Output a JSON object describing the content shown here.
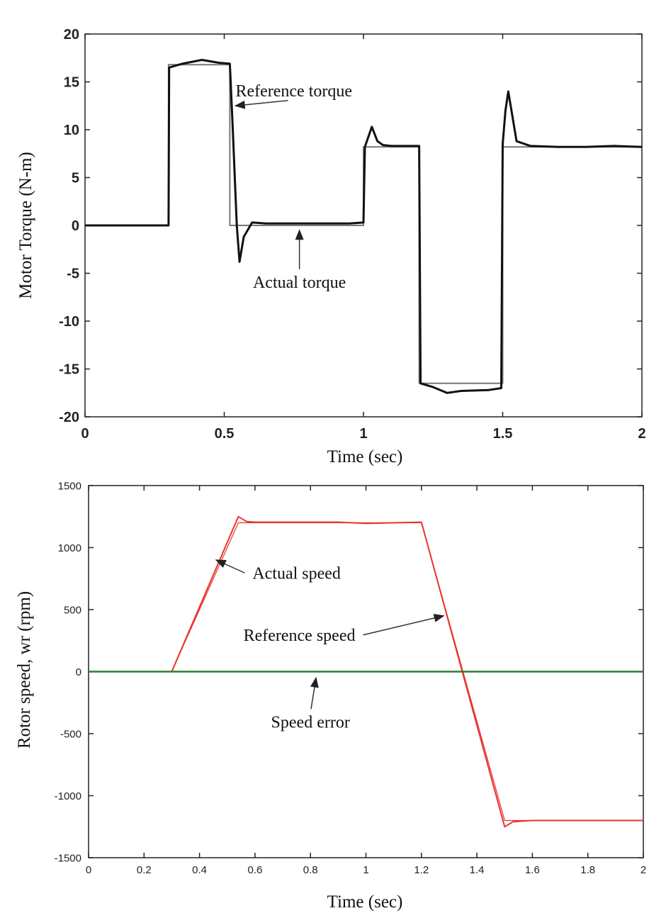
{
  "chart_data": [
    {
      "type": "line",
      "title": "",
      "xlabel": "Time (sec)",
      "ylabel": "Motor Torque (N-m)",
      "xlim": [
        0,
        2
      ],
      "ylim": [
        -20,
        20
      ],
      "xticks": [
        "0",
        "0.5",
        "1",
        "1.5",
        "2"
      ],
      "yticks": [
        "20",
        "15",
        "10",
        "5",
        "0",
        "-5",
        "-10",
        "-15",
        "-20"
      ],
      "grid": false,
      "series": [
        {
          "name": "Reference torque",
          "color": "#777777",
          "x": [
            0,
            0.3,
            0.3,
            0.52,
            0.52,
            0.55,
            0.55,
            1.0,
            1.0,
            1.2,
            1.2,
            1.5,
            1.5,
            2.0
          ],
          "y": [
            0,
            0,
            16.8,
            16.8,
            0,
            0,
            0,
            0,
            8.2,
            8.2,
            -16.5,
            -16.5,
            8.2,
            8.2
          ]
        },
        {
          "name": "Actual torque",
          "color": "#111111",
          "x": [
            0,
            0.3,
            0.302,
            0.35,
            0.42,
            0.48,
            0.52,
            0.53,
            0.545,
            0.555,
            0.57,
            0.6,
            0.65,
            0.8,
            0.95,
            1.0,
            1.005,
            1.03,
            1.05,
            1.07,
            1.1,
            1.15,
            1.195,
            1.2,
            1.205,
            1.25,
            1.3,
            1.35,
            1.45,
            1.495,
            1.5,
            1.51,
            1.52,
            1.55,
            1.6,
            1.7,
            1.8,
            1.9,
            2.0
          ],
          "y": [
            0,
            0,
            16.5,
            16.9,
            17.3,
            17.0,
            16.9,
            10.5,
            0,
            -3.8,
            -1.2,
            0.3,
            0.2,
            0.2,
            0.2,
            0.3,
            8.2,
            10.3,
            8.8,
            8.4,
            8.3,
            8.3,
            8.3,
            8.3,
            -16.5,
            -16.9,
            -17.5,
            -17.3,
            -17.2,
            -17.0,
            8.5,
            12.0,
            14.0,
            8.8,
            8.3,
            8.2,
            8.2,
            8.3,
            8.2
          ]
        }
      ],
      "annotations": [
        {
          "text": "Reference torque",
          "x": 0.75,
          "y": 13.5,
          "arrow_to": [
            0.54,
            12.5
          ]
        },
        {
          "text": "Actual torque",
          "x": 0.77,
          "y": -6.5,
          "arrow_to": [
            0.77,
            -0.5
          ]
        }
      ]
    },
    {
      "type": "line",
      "title": "",
      "xlabel": "Time (sec)",
      "ylabel": "Rotor speed, wr (rpm)",
      "xlim": [
        0,
        2
      ],
      "ylim": [
        -1500,
        1500
      ],
      "xticks": [
        "0",
        "0.2",
        "0.4",
        "0.6",
        "0.8",
        "1",
        "1.2",
        "1.4",
        "1.6",
        "1.8",
        "2"
      ],
      "yticks": [
        "1500",
        "1000",
        "500",
        "0",
        "-500",
        "-1000",
        "-1500"
      ],
      "grid": false,
      "series": [
        {
          "name": "Actual speed",
          "color": "#e8342f",
          "x": [
            0,
            0.3,
            0.54,
            0.57,
            0.6,
            0.9,
            1.0,
            1.2,
            1.5,
            1.53,
            1.6,
            2.0
          ],
          "y": [
            0,
            0,
            1250,
            1210,
            1205,
            1205,
            1195,
            1205,
            -1250,
            -1210,
            -1200,
            -1200
          ]
        },
        {
          "name": "Reference speed",
          "color": "#e8342f",
          "x": [
            0,
            0.3,
            0.54,
            1.2,
            1.5,
            2.0
          ],
          "y": [
            0,
            0,
            1200,
            1200,
            -1200,
            -1200
          ]
        },
        {
          "name": "Speed error",
          "color": "#2f7a2f",
          "x": [
            0,
            0.3,
            0.55,
            1.2,
            1.5,
            2.0
          ],
          "y": [
            0,
            0,
            0,
            0,
            0,
            0
          ]
        }
      ],
      "annotations": [
        {
          "text": "Actual speed",
          "x": 0.75,
          "y": 750,
          "arrow_to": [
            0.46,
            900
          ]
        },
        {
          "text": "Reference speed",
          "x": 0.76,
          "y": 250,
          "arrow_to": [
            1.28,
            450
          ]
        },
        {
          "text": "Speed error",
          "x": 0.8,
          "y": -450,
          "arrow_to": [
            0.82,
            -50
          ]
        }
      ]
    }
  ]
}
